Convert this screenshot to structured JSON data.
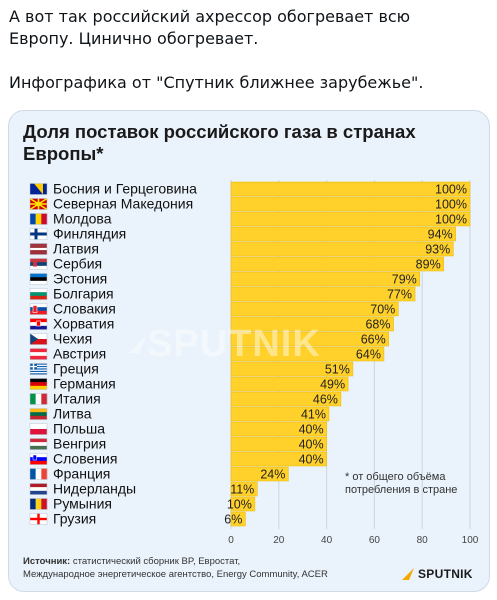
{
  "tweet": {
    "line1": "А вот так российский ахрессор обогревает всю",
    "line2": "Европу. Цинично обогревает.",
    "line3": "Инфографика от \"Спутник ближнее зарубежье\"."
  },
  "card": {
    "title_line1": "Доля поставок российского газа в странах",
    "title_line2": "Европы*",
    "footnote": "* от общего объёма потребления в стране",
    "source_label": "Источник:",
    "source_line1": " статистический сборник BP, Евростат,",
    "source_line2": "Международное энергетическое агентство, Energy Community, ACER",
    "logo_text": "SPUTNIK",
    "watermark_text": "SPUTNIK"
  },
  "colors": {
    "bar": "#ffd12a",
    "bar_edge": "#e8b800",
    "card_bg": "#eaf2fb",
    "grid": "#c9d6e4"
  },
  "chart_data": {
    "type": "bar",
    "orientation": "horizontal",
    "categories": [
      "Босния и Герцеговина",
      "Северная Македония",
      "Молдова",
      "Финляндия",
      "Латвия",
      "Сербия",
      "Эстония",
      "Болгария",
      "Словакия",
      "Хорватия",
      "Чехия",
      "Австрия",
      "Греция",
      "Германия",
      "Италия",
      "Литва",
      "Польша",
      "Венгрия",
      "Словения",
      "Франция",
      "Нидерланды",
      "Румыния",
      "Грузия"
    ],
    "values": [
      100,
      100,
      100,
      94,
      93,
      89,
      79,
      77,
      70,
      68,
      66,
      64,
      51,
      49,
      46,
      41,
      40,
      40,
      40,
      24,
      11,
      10,
      6
    ],
    "value_labels": [
      "100%",
      "100%",
      "100%",
      "94%",
      "93%",
      "89%",
      "79%",
      "77%",
      "70%",
      "68%",
      "66%",
      "64%",
      "51%",
      "49%",
      "46%",
      "41%",
      "40%",
      "40%",
      "40%",
      "24%",
      "11%",
      "10%",
      "6%"
    ],
    "flags": [
      "ba",
      "mk",
      "md",
      "fi",
      "lv",
      "rs",
      "ee",
      "bg",
      "sk",
      "hr",
      "cz",
      "at",
      "gr",
      "de",
      "it",
      "lt",
      "pl",
      "hu",
      "si",
      "fr",
      "nl",
      "ro",
      "ge"
    ],
    "xlim": [
      0,
      100
    ],
    "xticks": [
      "0",
      "20",
      "40",
      "60",
      "80",
      "100"
    ],
    "grid": true
  }
}
